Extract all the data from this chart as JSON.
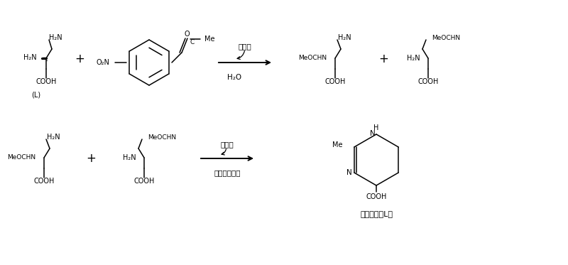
{
  "bg_color": "#ffffff",
  "reaction1_top": "无机碱",
  "reaction1_bottom": "H₂O",
  "reaction2_top": "三乙胺",
  "reaction2_bottom": "极性有机溶剂",
  "footer": "四氮噸嘖（L）",
  "label_L": "(L)"
}
